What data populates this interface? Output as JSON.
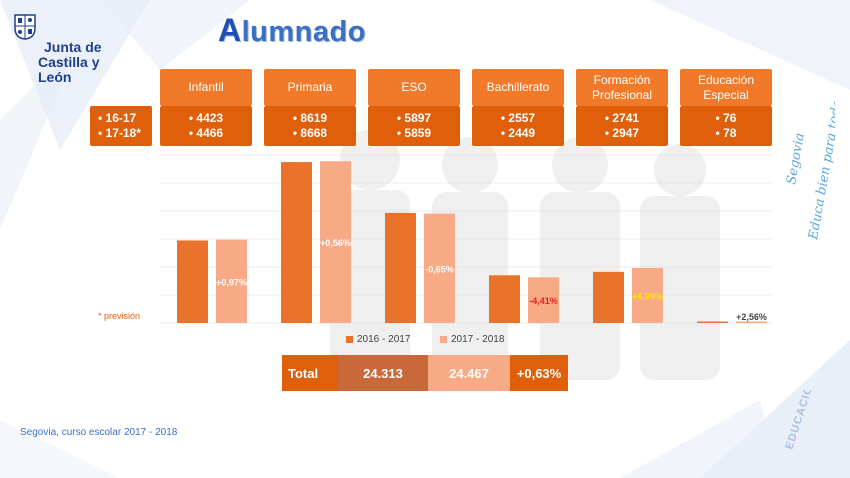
{
  "logo": {
    "line1": "Junta de",
    "line2": "Castilla y León"
  },
  "title": {
    "first": "A",
    "rest": "lumnado"
  },
  "years": [
    "• 16-17",
    "• 17-18*"
  ],
  "categories": [
    {
      "label": "Infantil",
      "v1": "• 4423",
      "v2": "• 4466"
    },
    {
      "label": "Primaria",
      "v1": "• 8619",
      "v2": "• 8668"
    },
    {
      "label": "ESO",
      "v1": "• 5897",
      "v2": "• 5859"
    },
    {
      "label": "Bachillerato",
      "v1": "• 2557",
      "v2": "• 2449"
    },
    {
      "label_l1": "Formación",
      "label_l2": "Profesional",
      "v1": "• 2741",
      "v2": "• 2947"
    },
    {
      "label_l1": "Educación",
      "label_l2": "Especial",
      "v1": "• 76",
      "v2": "• 78"
    }
  ],
  "note": "* previsión",
  "total": {
    "label": "Total",
    "v1": "24.313",
    "v2": "24.467",
    "change": "+0,63%"
  },
  "slogan": {
    "line1": "Segovia",
    "line2": "Educa bien para todos"
  },
  "stamp": "EDUCACIÓN",
  "footer": "Segovia, curso escolar 2017 - 2018",
  "colors": {
    "series1": "#e9732a",
    "series2": "#f8a985",
    "header": "#f07a2a",
    "value_box": "#e05f0b",
    "title": "#3a6fc4"
  },
  "chart_data": {
    "type": "bar",
    "categories": [
      "Infantil",
      "Primaria",
      "ESO",
      "Bachillerato",
      "Formación Profesional",
      "Educación Especial"
    ],
    "series": [
      {
        "name": "2016 - 2017",
        "values": [
          4423,
          8619,
          5897,
          2557,
          2741,
          76
        ]
      },
      {
        "name": "2017 - 2018",
        "values": [
          4466,
          8668,
          5859,
          2449,
          2947,
          78
        ]
      }
    ],
    "data_labels": [
      "+0,97%",
      "+0,56%",
      "-0,65%",
      "-4,41%",
      "+6,99%",
      "+2,56%"
    ],
    "label_colors": [
      "#ffffff",
      "#ffffff",
      "#ffffff",
      "#e8201a",
      "#f5e60a",
      "#444444"
    ],
    "ylim": [
      0,
      9000
    ],
    "grid": true,
    "legend": "bottom"
  }
}
